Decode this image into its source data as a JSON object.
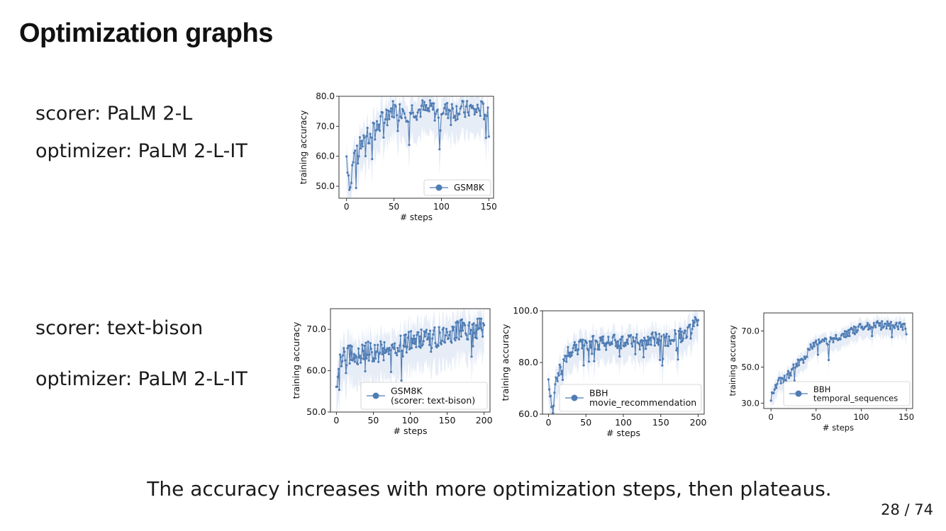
{
  "slide": {
    "title": "Optimization graphs",
    "caption": "The accuracy increases with more optimization steps, then plateaus.",
    "page_number": "28 / 74"
  },
  "configs": [
    {
      "scorer": "scorer: PaLM 2-L",
      "optimizer": "optimizer: PaLM 2-L-IT"
    },
    {
      "scorer": "scorer: text-bison",
      "optimizer": "optimizer: PaLM 2-L-IT"
    }
  ],
  "colors": {
    "series": "#4f7cb4",
    "band": "#dde6f3",
    "axis": "#222222"
  },
  "chart_data": [
    {
      "type": "line",
      "xlabel": "# steps",
      "ylabel": "training accuracy",
      "xlim": [
        -8,
        155
      ],
      "ylim": [
        46,
        80
      ],
      "xticks": [
        0,
        50,
        100,
        150
      ],
      "yticks": [
        50.0,
        60.0,
        70.0,
        80.0
      ],
      "ytick_labels": [
        "50.0",
        "60.0",
        "70.0",
        "80.0"
      ],
      "legend_position": "lower-right",
      "series": [
        {
          "name": "GSM8K",
          "x_range": [
            0,
            150
          ],
          "samples": [
            [
              0,
              60
            ],
            [
              2,
              54
            ],
            [
              4,
              49
            ],
            [
              6,
              56
            ],
            [
              8,
              60
            ],
            [
              10,
              63
            ],
            [
              12,
              58
            ],
            [
              14,
              66
            ],
            [
              16,
              62
            ],
            [
              18,
              68
            ],
            [
              20,
              61
            ],
            [
              22,
              67
            ],
            [
              24,
              65
            ],
            [
              26,
              68
            ],
            [
              28,
              70
            ],
            [
              30,
              66
            ],
            [
              32,
              72
            ],
            [
              34,
              69
            ],
            [
              36,
              71
            ],
            [
              38,
              73
            ],
            [
              40,
              72
            ],
            [
              42,
              74
            ],
            [
              45,
              75
            ],
            [
              50,
              76
            ],
            [
              55,
              75
            ],
            [
              60,
              76
            ],
            [
              65,
              74
            ],
            [
              70,
              76
            ],
            [
              75,
              75
            ],
            [
              80,
              76
            ],
            [
              85,
              75
            ],
            [
              90,
              76
            ],
            [
              95,
              74
            ],
            [
              100,
              76
            ],
            [
              105,
              75
            ],
            [
              110,
              76
            ],
            [
              115,
              75
            ],
            [
              120,
              76
            ],
            [
              125,
              75
            ],
            [
              130,
              76
            ],
            [
              135,
              75
            ],
            [
              140,
              76
            ],
            [
              145,
              75
            ],
            [
              150,
              74
            ]
          ]
        }
      ]
    },
    {
      "type": "line",
      "xlabel": "# steps",
      "ylabel": "training accuracy",
      "xlim": [
        -8,
        208
      ],
      "ylim": [
        50,
        75
      ],
      "xticks": [
        0,
        50,
        100,
        150,
        200
      ],
      "yticks": [
        50.0,
        60.0,
        70.0
      ],
      "ytick_labels": [
        "50.0",
        "60.0",
        "70.0"
      ],
      "legend_position": "lower-right",
      "series": [
        {
          "name": "GSM8K\n(scorer: text-bison)",
          "x_range": [
            0,
            200
          ],
          "samples": [
            [
              0,
              55
            ],
            [
              3,
              61
            ],
            [
              6,
              63
            ],
            [
              10,
              63
            ],
            [
              20,
              64
            ],
            [
              30,
              64
            ],
            [
              40,
              65
            ],
            [
              50,
              64
            ],
            [
              60,
              65
            ],
            [
              70,
              65
            ],
            [
              80,
              66
            ],
            [
              90,
              66
            ],
            [
              100,
              67
            ],
            [
              110,
              67
            ],
            [
              120,
              68
            ],
            [
              130,
              68
            ],
            [
              140,
              68
            ],
            [
              150,
              69
            ],
            [
              160,
              69
            ],
            [
              170,
              70
            ],
            [
              180,
              70
            ],
            [
              190,
              70
            ],
            [
              200,
              71
            ]
          ]
        }
      ]
    },
    {
      "type": "line",
      "xlabel": "# steps",
      "ylabel": "training accuracy",
      "xlim": [
        -8,
        208
      ],
      "ylim": [
        60,
        100
      ],
      "xticks": [
        0,
        50,
        100,
        150,
        200
      ],
      "yticks": [
        60.0,
        80.0,
        100.0
      ],
      "ytick_labels": [
        "60.0",
        "80.0",
        "100.0"
      ],
      "legend_position": "lower-right",
      "series": [
        {
          "name": "BBH\nmovie_recommendation",
          "x_range": [
            0,
            200
          ],
          "samples": [
            [
              0,
              71
            ],
            [
              3,
              66
            ],
            [
              6,
              64
            ],
            [
              10,
              72
            ],
            [
              15,
              77
            ],
            [
              20,
              80
            ],
            [
              25,
              83
            ],
            [
              30,
              85
            ],
            [
              40,
              86
            ],
            [
              50,
              87
            ],
            [
              60,
              88
            ],
            [
              70,
              87
            ],
            [
              80,
              88
            ],
            [
              90,
              88
            ],
            [
              100,
              88
            ],
            [
              110,
              89
            ],
            [
              120,
              89
            ],
            [
              130,
              88
            ],
            [
              140,
              89
            ],
            [
              150,
              89
            ],
            [
              160,
              89
            ],
            [
              170,
              90
            ],
            [
              180,
              91
            ],
            [
              190,
              92
            ],
            [
              195,
              95
            ],
            [
              200,
              95
            ]
          ]
        }
      ]
    },
    {
      "type": "line",
      "xlabel": "# steps",
      "ylabel": "training accuracy",
      "xlim": [
        -8,
        157
      ],
      "ylim": [
        27,
        80
      ],
      "xticks": [
        0,
        50,
        100,
        150
      ],
      "yticks": [
        30.0,
        50.0,
        70.0
      ],
      "ytick_labels": [
        "30.0",
        "50.0",
        "70.0"
      ],
      "legend_position": "lower-right",
      "series": [
        {
          "name": "BBH\ntemporal_sequences",
          "x_range": [
            0,
            150
          ],
          "samples": [
            [
              0,
              33
            ],
            [
              3,
              38
            ],
            [
              6,
              40
            ],
            [
              10,
              42
            ],
            [
              15,
              43
            ],
            [
              20,
              46
            ],
            [
              25,
              49
            ],
            [
              30,
              52
            ],
            [
              35,
              54
            ],
            [
              40,
              58
            ],
            [
              45,
              61
            ],
            [
              50,
              63
            ],
            [
              60,
              64
            ],
            [
              70,
              65
            ],
            [
              80,
              67
            ],
            [
              85,
              69
            ],
            [
              90,
              70
            ],
            [
              100,
              72
            ],
            [
              110,
              73
            ],
            [
              120,
              73
            ],
            [
              130,
              73
            ],
            [
              140,
              73
            ],
            [
              150,
              73
            ]
          ]
        }
      ]
    }
  ]
}
